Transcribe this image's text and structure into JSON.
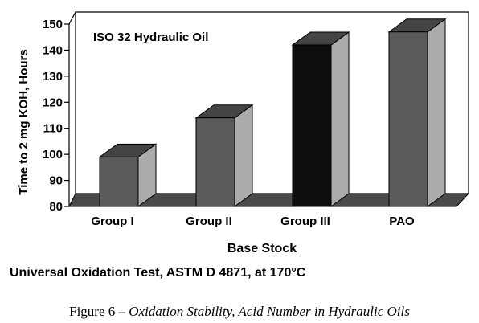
{
  "chart_data": {
    "type": "bar",
    "title": "ISO 32 Hydraulic Oil",
    "xlabel": "Base Stock",
    "ylabel": "Time to 2 mg KOH, Hours",
    "categories": [
      "Group I",
      "Group II",
      "Group III",
      "PAO"
    ],
    "values": [
      99,
      114,
      142,
      147
    ],
    "ylim": [
      80,
      150
    ],
    "yticks": [
      80,
      90,
      100,
      110,
      120,
      130,
      140,
      150
    ],
    "grid": false,
    "bar_colors": [
      "#5a5a5a",
      "#5a5a5a",
      "#0d0d0d",
      "#5a5a5a"
    ]
  },
  "note": "Universal Oxidation Test, ASTM D 4871, at 170°C",
  "caption": {
    "prefix": "Figure 6 – ",
    "italic": "Oxidation Stability, Acid Number in Hydraulic Oils"
  }
}
